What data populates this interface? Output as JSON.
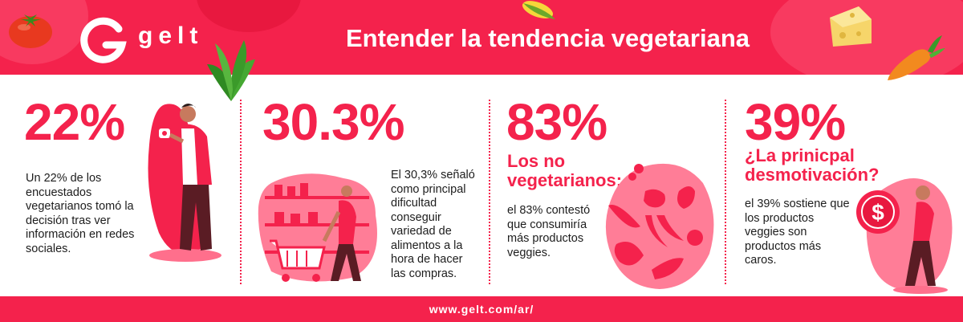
{
  "header": {
    "brand": "gelt",
    "title": "Entender la tendencia vegetariana",
    "background_color": "#f4224c"
  },
  "stats": [
    {
      "value": "22%",
      "description": "Un 22% de los encuestados vegetarianos tomó la decisión tras ver información en redes sociales."
    },
    {
      "value": "30.3%",
      "description": "El 30,3% señaló como principal dificultad conseguir variedad de alimentos a la hora de hacer las compras."
    },
    {
      "value": "83%",
      "subtitle": "Los no vegetarianos:",
      "description": "el 83% contestó que consumiría más productos veggies."
    },
    {
      "value": "39%",
      "subtitle": "¿La prinicpal desmotivación?",
      "description": "el 39% sostiene que los productos veggies son productos más caros."
    }
  ],
  "footer": {
    "url": "www.gelt.com/ar/"
  },
  "icons": [
    "tomato-icon",
    "spinach-icon",
    "corn-icon",
    "cheese-icon",
    "carrot-icon",
    "dollar-coin-icon",
    "shopping-cart-icon"
  ],
  "colors": {
    "accent": "#f4224c",
    "light_accent": "#ff8aa3",
    "text": "#1d1d1d"
  }
}
